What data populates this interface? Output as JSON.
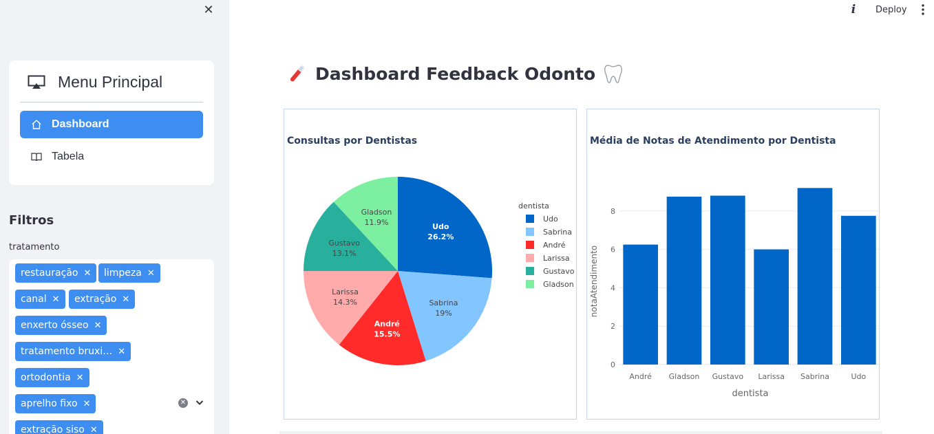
{
  "toolbar": {
    "close_icon": "close-icon",
    "info_icon": "info-icon",
    "deploy_label": "Deploy",
    "more_icon": "more-vertical-icon"
  },
  "sidebar": {
    "menu_title": "Menu Principal",
    "menu_icon": "airplay-icon",
    "items": [
      {
        "label": "Dashboard",
        "icon": "house-icon",
        "active": true
      },
      {
        "label": "Tabela",
        "icon": "book-icon",
        "active": false
      }
    ],
    "filters_title": "Filtros",
    "field_label": "tratamento",
    "tags": [
      "restauração",
      "limpeza",
      "canal",
      "extração",
      "enxerto ósseo",
      "tratamento bruxi…",
      "ortodontia",
      "aprelho fixo",
      "extração siso"
    ],
    "accent": "#3d8ef0"
  },
  "page": {
    "title": "Dashboard Feedback Odonto",
    "left_emoji": "toothbrush-icon",
    "right_emoji": "tooth-icon"
  },
  "chart_data": [
    {
      "type": "pie",
      "title": "Consultas por Dentistas",
      "legend_title": "dentista",
      "legend_position": "right",
      "slices": [
        {
          "label": "Udo",
          "value": 26.2,
          "color": "#0066c7"
        },
        {
          "label": "Sabrina",
          "value": 19,
          "color": "#82c5ff"
        },
        {
          "label": "André",
          "value": 15.5,
          "color": "#ff2b2b"
        },
        {
          "label": "Larissa",
          "value": 14.3,
          "color": "#ffabab"
        },
        {
          "label": "Gustavo",
          "value": 13.1,
          "color": "#29b09d"
        },
        {
          "label": "Gladson",
          "value": 11.9,
          "color": "#7defa1"
        }
      ],
      "slice_labels": [
        "Udo\n26.2%",
        "Gladson\n11.9%",
        "Gustavo\n13.1%",
        "Larissa\n14.3%",
        "André\n15.5%",
        "Sabrina\n19%"
      ],
      "legend_entries": [
        "Udo",
        "Sabrina",
        "André",
        "Larissa",
        "Gustavo",
        "Gladson"
      ]
    },
    {
      "type": "bar",
      "title": "Média de Notas de Atendimento por Dentista",
      "xlabel": "dentista",
      "ylabel": "notaAtendimento",
      "categories": [
        "André",
        "Gladson",
        "Gustavo",
        "Larissa",
        "Sabrina",
        "Udo"
      ],
      "values": [
        6.25,
        8.75,
        8.8,
        6.0,
        9.2,
        7.75
      ],
      "ylim": [
        0,
        9.5
      ],
      "yticks": [
        "0",
        "2",
        "4",
        "6",
        "8"
      ],
      "grid": true,
      "color": "#0066c7"
    }
  ]
}
